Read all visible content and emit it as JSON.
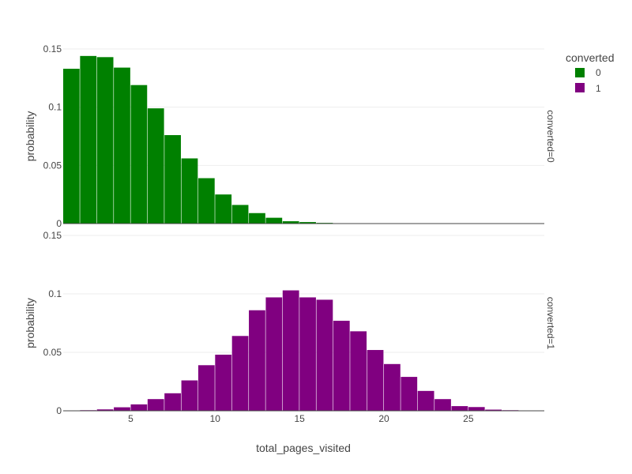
{
  "chart_data": {
    "type": "bar",
    "xlabel": "total_pages_visited",
    "ylabel": "probability",
    "xlim": [
      1,
      29.5
    ],
    "ylim": [
      0,
      0.15
    ],
    "x_ticks": [
      5,
      10,
      15,
      20,
      25
    ],
    "y_ticks": [
      0,
      0.05,
      0.1,
      0.15
    ],
    "y_tick_labels": [
      "0",
      "0.05",
      "0.1",
      "0.15"
    ],
    "bin_width": 1,
    "legend": {
      "title": "converted",
      "entries": [
        {
          "label": "0",
          "color": "#008000"
        },
        {
          "label": "1",
          "color": "#800080"
        }
      ],
      "position": "top-right"
    },
    "facets": [
      {
        "label": "converted=0",
        "color": "#008000",
        "bins": [
          {
            "x": 1.5,
            "y": 0.133
          },
          {
            "x": 2.5,
            "y": 0.144
          },
          {
            "x": 3.5,
            "y": 0.143
          },
          {
            "x": 4.5,
            "y": 0.134
          },
          {
            "x": 5.5,
            "y": 0.119
          },
          {
            "x": 6.5,
            "y": 0.099
          },
          {
            "x": 7.5,
            "y": 0.076
          },
          {
            "x": 8.5,
            "y": 0.056
          },
          {
            "x": 9.5,
            "y": 0.039
          },
          {
            "x": 10.5,
            "y": 0.025
          },
          {
            "x": 11.5,
            "y": 0.016
          },
          {
            "x": 12.5,
            "y": 0.009
          },
          {
            "x": 13.5,
            "y": 0.005
          },
          {
            "x": 14.5,
            "y": 0.002
          },
          {
            "x": 15.5,
            "y": 0.0013
          },
          {
            "x": 16.5,
            "y": 0.0006
          },
          {
            "x": 17.5,
            "y": 0.0002
          }
        ]
      },
      {
        "label": "converted=1",
        "color": "#800080",
        "bins": [
          {
            "x": 2.5,
            "y": 0.0005
          },
          {
            "x": 3.5,
            "y": 0.0012
          },
          {
            "x": 4.5,
            "y": 0.003
          },
          {
            "x": 5.5,
            "y": 0.0055
          },
          {
            "x": 6.5,
            "y": 0.01
          },
          {
            "x": 7.5,
            "y": 0.015
          },
          {
            "x": 8.5,
            "y": 0.026
          },
          {
            "x": 9.5,
            "y": 0.039
          },
          {
            "x": 10.5,
            "y": 0.048
          },
          {
            "x": 11.5,
            "y": 0.064
          },
          {
            "x": 12.5,
            "y": 0.086
          },
          {
            "x": 13.5,
            "y": 0.097
          },
          {
            "x": 14.5,
            "y": 0.103
          },
          {
            "x": 15.5,
            "y": 0.097
          },
          {
            "x": 16.5,
            "y": 0.095
          },
          {
            "x": 17.5,
            "y": 0.077
          },
          {
            "x": 18.5,
            "y": 0.068
          },
          {
            "x": 19.5,
            "y": 0.052
          },
          {
            "x": 20.5,
            "y": 0.04
          },
          {
            "x": 21.5,
            "y": 0.029
          },
          {
            "x": 22.5,
            "y": 0.017
          },
          {
            "x": 23.5,
            "y": 0.01
          },
          {
            "x": 24.5,
            "y": 0.004
          },
          {
            "x": 25.5,
            "y": 0.0032
          },
          {
            "x": 26.5,
            "y": 0.001
          },
          {
            "x": 27.5,
            "y": 0.0005
          }
        ]
      }
    ]
  }
}
